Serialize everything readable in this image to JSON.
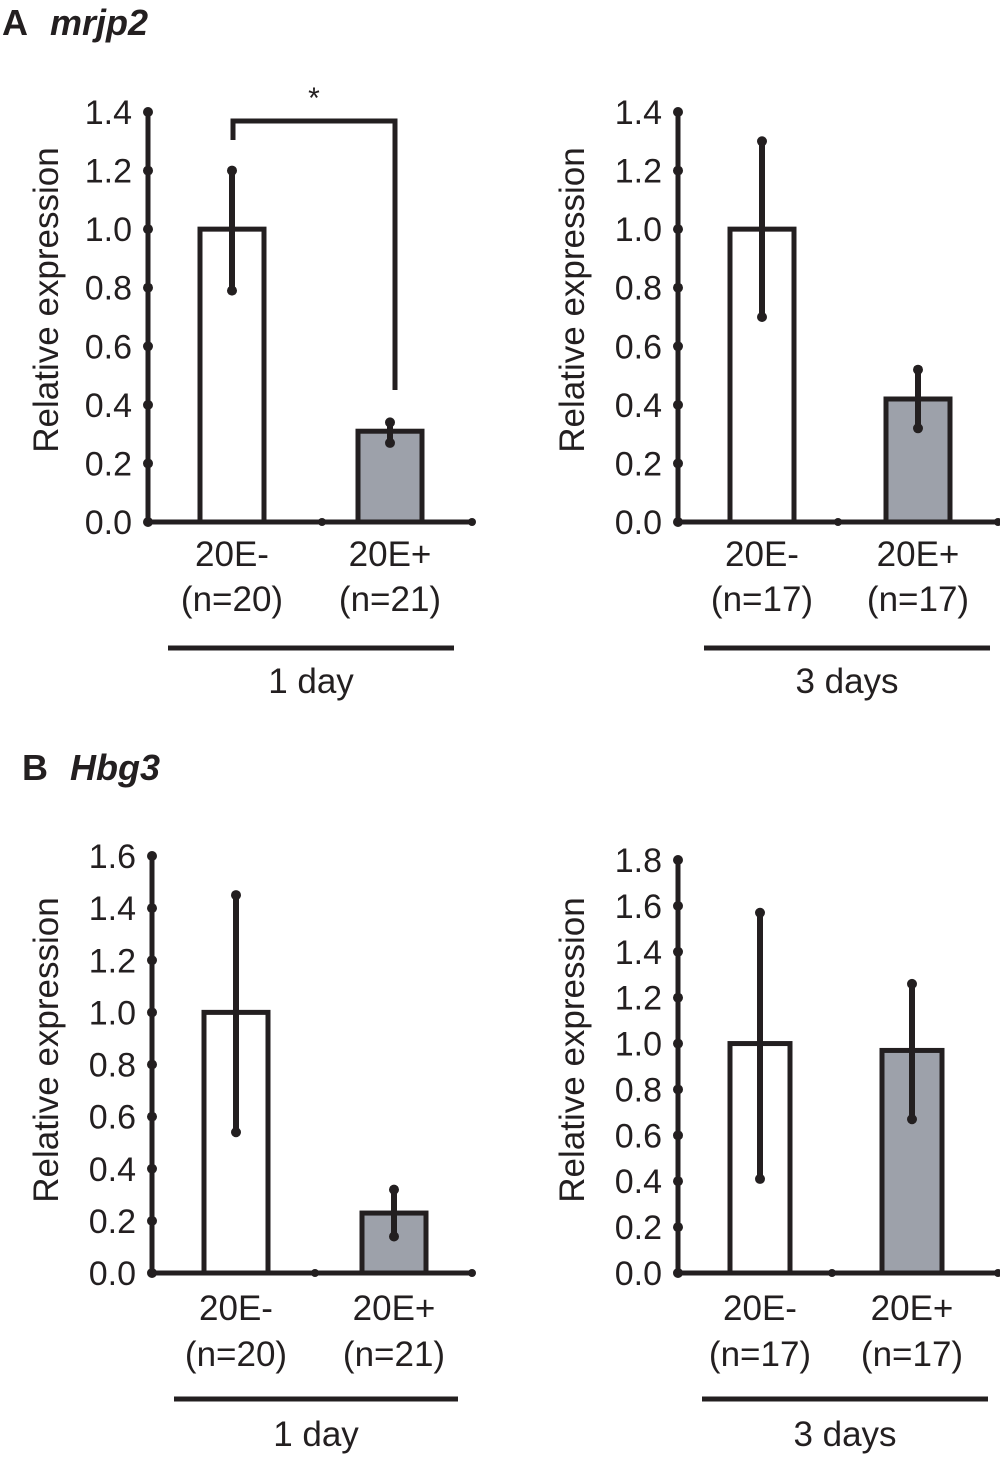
{
  "panels": [
    {
      "letter": "A",
      "gene": "mrjp2"
    },
    {
      "letter": "B",
      "gene": "Hbg3"
    }
  ],
  "colors": {
    "control_fill": "#ffffff",
    "treated_fill": "#9da1aa",
    "ink": "#231f20"
  },
  "chart_data": [
    {
      "type": "bar",
      "panel": "A",
      "gene": "mrjp2",
      "ylabel": "Relative expression",
      "ylim": [
        0,
        1.4
      ],
      "yticks": [
        "0.0",
        "0.2",
        "0.4",
        "0.6",
        "0.8",
        "1.0",
        "1.2",
        "1.4"
      ],
      "ystep": 0.2,
      "categories": [
        "20E-",
        "20E+"
      ],
      "n_labels": [
        "(n=20)",
        "(n=21)"
      ],
      "values": [
        1.0,
        0.31
      ],
      "err_low": [
        0.79,
        0.27
      ],
      "err_high": [
        1.2,
        0.34
      ],
      "group_label": "1 day",
      "significance": "*"
    },
    {
      "type": "bar",
      "panel": "A",
      "gene": "mrjp2",
      "ylabel": "Relative expression",
      "ylim": [
        0,
        1.4
      ],
      "yticks": [
        "0.0",
        "0.2",
        "0.4",
        "0.6",
        "0.8",
        "1.0",
        "1.2",
        "1.4"
      ],
      "ystep": 0.2,
      "categories": [
        "20E-",
        "20E+"
      ],
      "n_labels": [
        "(n=17)",
        "(n=17)"
      ],
      "values": [
        1.0,
        0.42
      ],
      "err_low": [
        0.7,
        0.32
      ],
      "err_high": [
        1.3,
        0.52
      ],
      "group_label": "3 days",
      "significance": ""
    },
    {
      "type": "bar",
      "panel": "B",
      "gene": "Hbg3",
      "ylabel": "Relative expression",
      "ylim": [
        0,
        1.6
      ],
      "yticks": [
        "0.0",
        "0.2",
        "0.4",
        "0.6",
        "0.8",
        "1.0",
        "1.2",
        "1.4",
        "1.6"
      ],
      "ystep": 0.2,
      "categories": [
        "20E-",
        "20E+"
      ],
      "n_labels": [
        "(n=20)",
        "(n=21)"
      ],
      "values": [
        1.0,
        0.23
      ],
      "err_low": [
        0.54,
        0.14
      ],
      "err_high": [
        1.45,
        0.32
      ],
      "group_label": "1 day",
      "significance": ""
    },
    {
      "type": "bar",
      "panel": "B",
      "gene": "Hbg3",
      "ylabel": "Relative expression",
      "ylim": [
        0,
        1.8
      ],
      "yticks": [
        "0.0",
        "0.2",
        "0.4",
        "0.6",
        "0.8",
        "1.0",
        "1.2",
        "1.4",
        "1.6",
        "1.8"
      ],
      "ystep": 0.2,
      "categories": [
        "20E-",
        "20E+"
      ],
      "n_labels": [
        "(n=17)",
        "(n=17)"
      ],
      "values": [
        1.0,
        0.97
      ],
      "err_low": [
        0.41,
        0.67
      ],
      "err_high": [
        1.57,
        1.26
      ],
      "group_label": "3 days",
      "significance": ""
    }
  ]
}
